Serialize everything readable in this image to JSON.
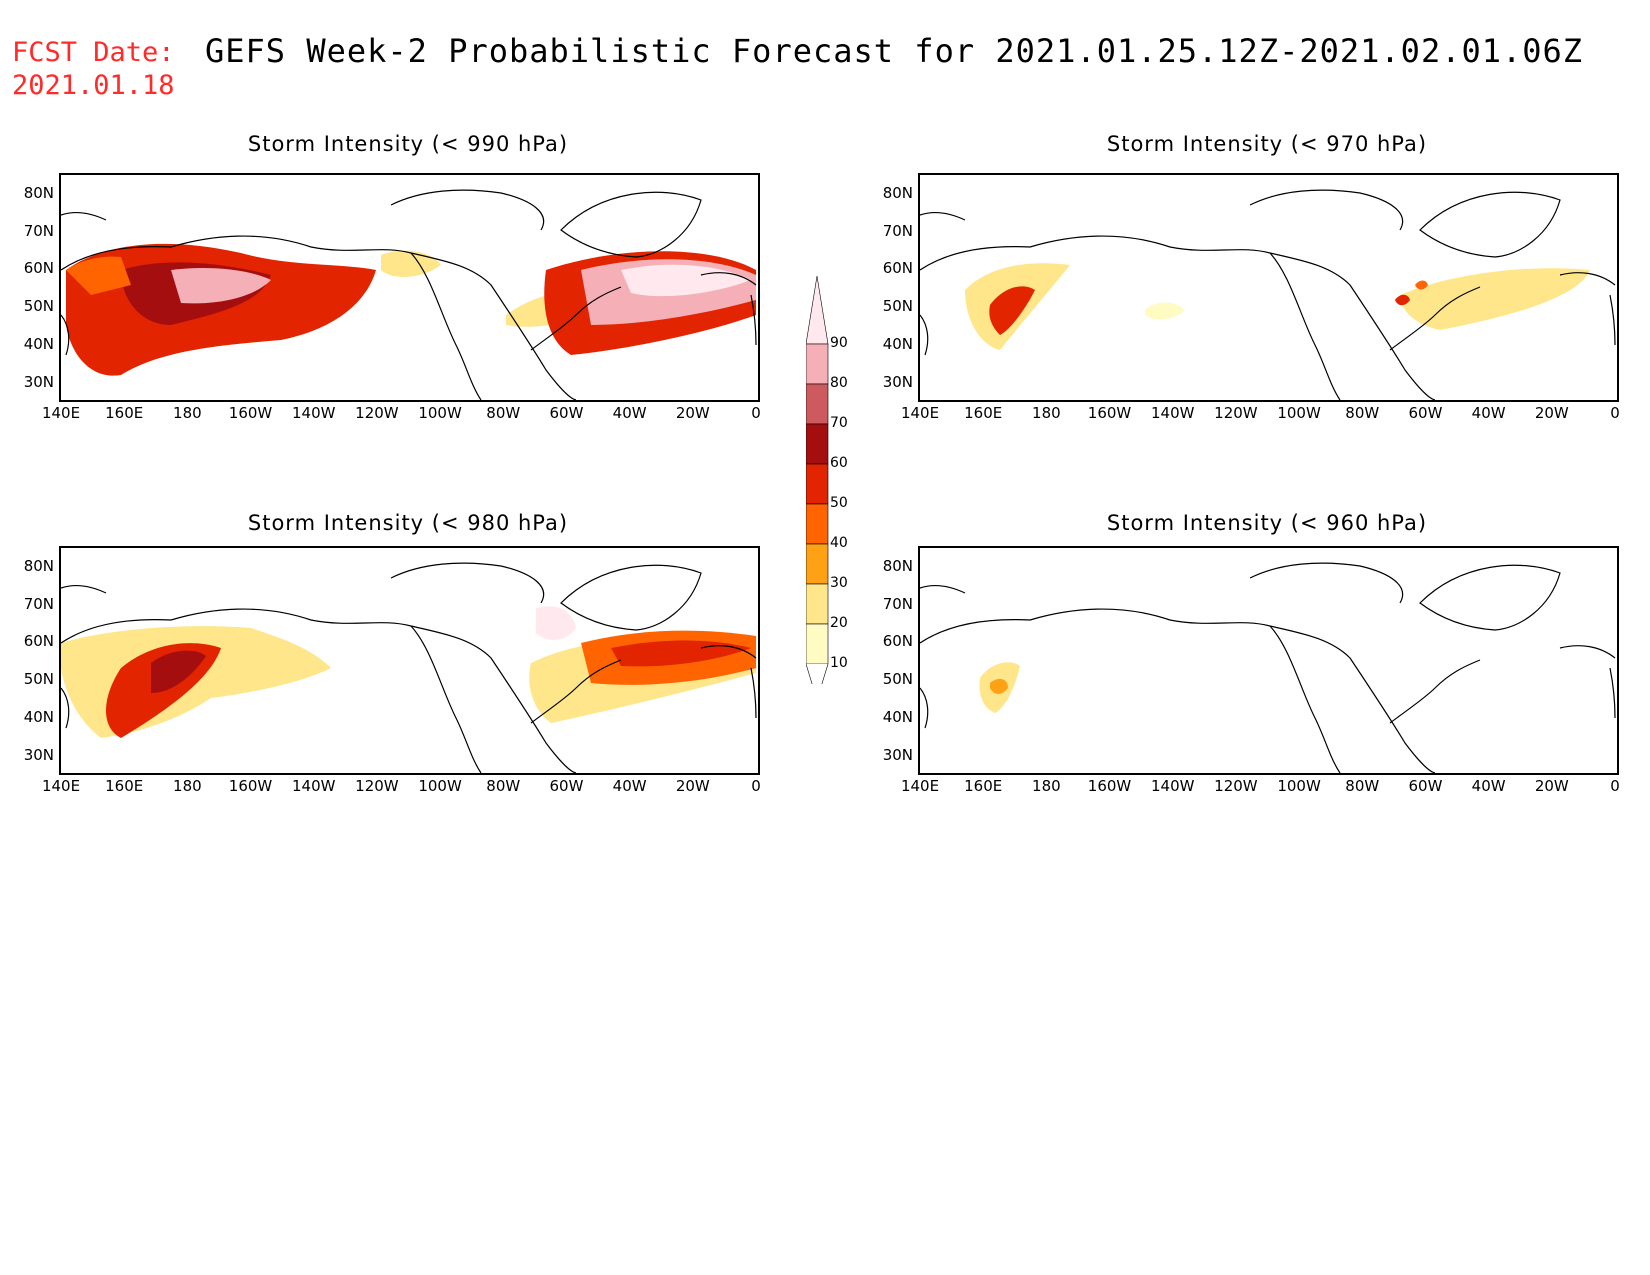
{
  "header": {
    "fcst_line1": "FCST Date:",
    "fcst_line2": "2021.01.18",
    "title": "GEFS Week-2 Probabilistic Forecast for 2021.01.25.12Z-2021.02.01.06Z"
  },
  "panels": [
    {
      "title": "Storm Intensity (< 990 hPa)"
    },
    {
      "title": "Storm Intensity (< 970 hPa)"
    },
    {
      "title": "Storm Intensity (< 980 hPa)"
    },
    {
      "title": "Storm Intensity (< 960 hPa)"
    }
  ],
  "axes": {
    "lat_labels": [
      "80N",
      "70N",
      "60N",
      "50N",
      "40N",
      "30N"
    ],
    "lon_labels": [
      "140E",
      "160E",
      "180",
      "160W",
      "140W",
      "120W",
      "100W",
      "80W",
      "60W",
      "40W",
      "20W",
      "0"
    ]
  },
  "colorbar": {
    "labels": [
      "90",
      "80",
      "70",
      "60",
      "50",
      "40",
      "30",
      "20",
      "10"
    ],
    "colors": [
      "#ffe9ee",
      "#f4b0b6",
      "#cc5a5e",
      "#a50e0e",
      "#e32400",
      "#ff6400",
      "#ffa114",
      "#ffe68a",
      "#fffbc2"
    ]
  }
}
